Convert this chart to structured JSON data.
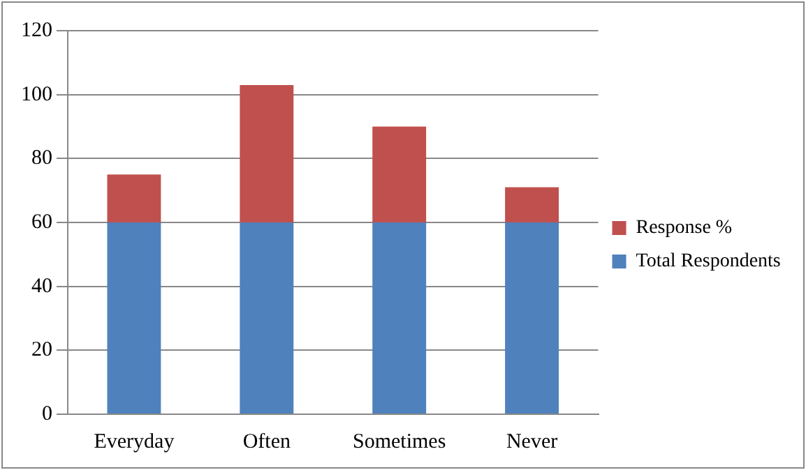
{
  "chart_data": {
    "type": "bar",
    "stacked": true,
    "categories": [
      "Everyday",
      "Often",
      "Sometimes",
      "Never"
    ],
    "series": [
      {
        "name": "Total Respondents",
        "color": "#4f81bd",
        "values": [
          60,
          60,
          60,
          60
        ]
      },
      {
        "name": "Response %",
        "color": "#c0504d",
        "values": [
          15,
          43,
          30,
          11
        ]
      }
    ],
    "ylim": [
      0,
      120
    ],
    "yticks": [
      0,
      20,
      40,
      60,
      80,
      100,
      120
    ],
    "grid": "y",
    "legend": "right"
  }
}
